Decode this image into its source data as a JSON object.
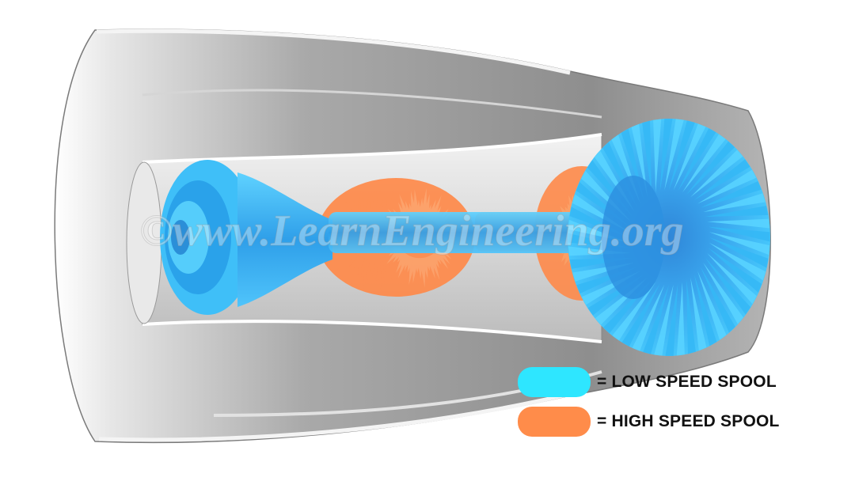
{
  "diagram": {
    "watermark": "©www.LearnEngineering.org",
    "legend": [
      {
        "label": "= LOW SPEED SPOOL",
        "color": "#2ee6ff"
      },
      {
        "label": "= HIGH SPEED SPOOL",
        "color": "#ff8c4a"
      }
    ],
    "colors": {
      "low_spool": "#35b8f5",
      "high_spool": "#ff8a4a",
      "nacelle": "#b9b9b9"
    }
  }
}
